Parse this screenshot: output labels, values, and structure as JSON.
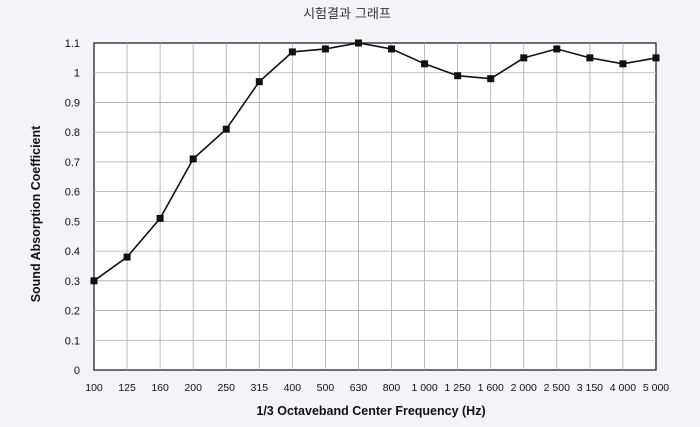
{
  "chart_data": {
    "type": "line",
    "title": "시험결과 그래프",
    "xlabel": "1/3 Octaveband Center Frequency (Hz)",
    "ylabel": "Sound Absorption Coefficient",
    "categories": [
      "100",
      "125",
      "160",
      "200",
      "250",
      "315",
      "400",
      "500",
      "630",
      "800",
      "1 000",
      "1 250",
      "1 600",
      "2 000",
      "2 500",
      "3 150",
      "4 000",
      "5 000"
    ],
    "series": [
      {
        "values": [
          0.3,
          0.38,
          0.51,
          0.71,
          0.81,
          0.97,
          1.07,
          1.08,
          1.1,
          1.08,
          1.03,
          0.99,
          0.98,
          1.05,
          1.08,
          1.05,
          1.03,
          1.05
        ],
        "color": "#111111",
        "marker": "square"
      }
    ],
    "yticks": [
      "0",
      "0.1",
      "0.2",
      "0.3",
      "0.4",
      "0.5",
      "0.6",
      "0.7",
      "0.8",
      "0.9",
      "1",
      "1.1"
    ],
    "ylim": [
      0,
      1.1
    ],
    "grid": true
  }
}
